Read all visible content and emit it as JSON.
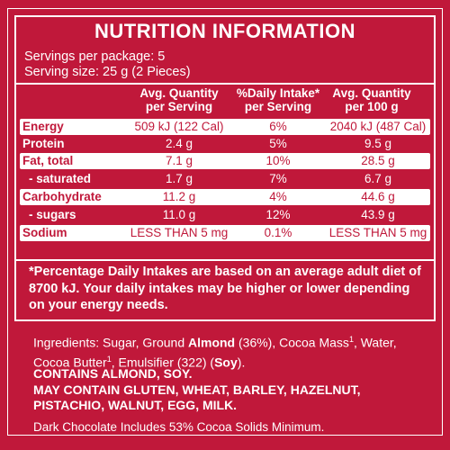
{
  "colors": {
    "background": "#c0183a",
    "text": "#ffffff"
  },
  "nutrition": {
    "title": "NUTRITION INFORMATION",
    "servings_per_package": "Servings per package: 5",
    "serving_size": "Serving size: 25 g (2 Pieces)",
    "headers": {
      "per_serving_l1": "Avg. Quantity",
      "per_serving_l2": "per Serving",
      "daily_l1": "%Daily Intake*",
      "daily_l2": "per Serving",
      "per_100_l1": "Avg. Quantity",
      "per_100_l2": "per 100 g"
    },
    "rows": [
      {
        "label": "Energy",
        "per_serving": "509 kJ (122 Cal)",
        "daily": "6%",
        "per_100g": "2040 kJ (487 Cal)"
      },
      {
        "label": "Protein",
        "per_serving": "2.4 g",
        "daily": "5%",
        "per_100g": "9.5 g"
      },
      {
        "label": "Fat, total",
        "per_serving": "7.1 g",
        "daily": "10%",
        "per_100g": "28.5 g"
      },
      {
        "label": "- saturated",
        "per_serving": "1.7 g",
        "daily": "7%",
        "per_100g": "6.7 g"
      },
      {
        "label": "Carbohydrate",
        "per_serving": "11.2 g",
        "daily": "4%",
        "per_100g": "44.6 g"
      },
      {
        "label": "- sugars",
        "per_serving": "11.0 g",
        "daily": "12%",
        "per_100g": "43.9 g"
      },
      {
        "label": "Sodium",
        "per_serving": "LESS THAN 5 mg",
        "daily": "0.1%",
        "per_100g": "LESS THAN 5 mg"
      }
    ],
    "footnote": "*Percentage Daily Intakes are based on an average adult diet of 8700 kJ. Your daily intakes may be higher or lower depending on your energy needs."
  },
  "ingredients": {
    "prefix": "Ingredients: Sugar, Ground ",
    "almond": "Almond",
    "mid": " (36%), Cocoa Mass",
    "sup1": "1",
    "mid2": ", Water, Cocoa Butter",
    "sup2": "1",
    "mid3": ", Emulsifier (322) (",
    "soy": "Soy",
    "end": ")."
  },
  "allergens": {
    "line1": "CONTAINS ALMOND, SOY.",
    "line2": "MAY CONTAIN GLUTEN, WHEAT, BARLEY, HAZELNUT, PISTACHIO, WALNUT, EGG, MILK."
  },
  "cocoa_note": "Dark Chocolate Includes 53% Cocoa Solids Minimum."
}
